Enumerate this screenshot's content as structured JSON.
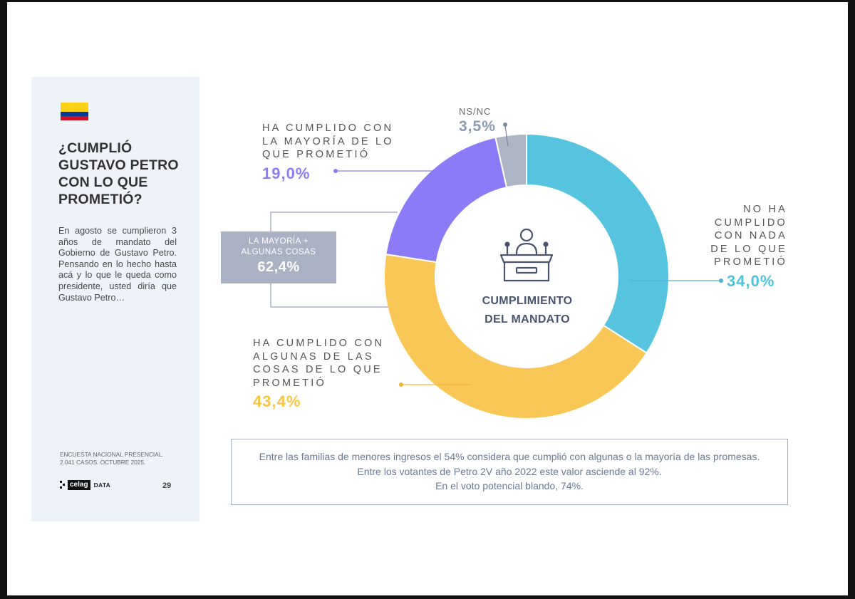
{
  "sidebar": {
    "flag_colors": [
      "#FCD116",
      "#003893",
      "#CE1126"
    ],
    "title": "¿CUMPLIÓ\nGUSTAVO PETRO\nCON LO QUE\nPROMETIÓ?",
    "question": "En agosto se cumplieron 3 años de mandato del Gobierno de Gustavo Petro. Pensando en lo hecho hasta acá y lo que le queda como presidente, usted diría que Gustavo Petro…",
    "footnote": "ENCUESTA NACIONAL PRESENCIAL.\n2.041 CASOS. OCTUBRE 2025.",
    "logo_brand": "celag",
    "logo_suffix": "DATA",
    "page_number": "29"
  },
  "chart_data": {
    "type": "pie",
    "center_title": "CUMPLIMIENTO\nDEL MANDATO",
    "center_icon": "podium-speaker-icon",
    "slices": [
      {
        "label": "NO HA\nCUMPLIDO\nCON NADA\nDE LO QUE\nPROMETIÓ",
        "value": 34.0,
        "display": "34,0%",
        "color": "#56C4DE"
      },
      {
        "label": "HA CUMPLIDO CON\nALGUNAS DE LAS\nCOSAS DE LO QUE\nPROMETIÓ",
        "value": 43.4,
        "display": "43,4%",
        "color": "#F9C756"
      },
      {
        "label": "HA CUMPLIDO CON\nLA MAYORÍA DE LO\nQUE PROMETIÓ",
        "value": 19.0,
        "display": "19,0%",
        "color": "#8C7BF6"
      },
      {
        "label": "NS/NC",
        "value": 3.5,
        "display": "3,5%",
        "color": "#AEB6C6"
      }
    ],
    "aggregate": {
      "label": "LA MAYORÍA +\nALGUNAS COSAS",
      "value": 62.4,
      "display": "62,4%"
    }
  },
  "note": {
    "lines": [
      "Entre las familias de menores ingresos el 54% considera que cumplió con algunas o la mayoría de las promesas.",
      "Entre los votantes de Petro 2V año 2022 este valor asciende al 92%.",
      "En el voto potencial blando, 74%."
    ]
  }
}
